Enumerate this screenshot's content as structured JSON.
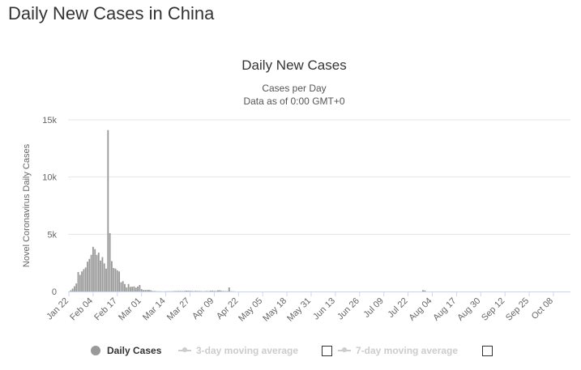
{
  "page": {
    "heading": "Daily New Cases in China"
  },
  "chart_data": {
    "type": "bar",
    "title": "Daily New Cases",
    "subtitle_1": "Cases per Day",
    "subtitle_2": "Data as of 0:00 GMT+0",
    "xlabel": "",
    "ylabel": "Novel Coronavirus Daily Cases",
    "ylim": [
      0,
      15000
    ],
    "yticks": [
      0,
      5000,
      10000,
      15000
    ],
    "ytick_labels": [
      "0",
      "5k",
      "10k",
      "15k"
    ],
    "x_start": "Jan 22",
    "day_count": 262,
    "xtick_labels": [
      "Jan 22",
      "Feb 04",
      "Feb 17",
      "Mar 01",
      "Mar 14",
      "Mar 27",
      "Apr 09",
      "Apr 22",
      "May 05",
      "May 18",
      "May 31",
      "Jun 13",
      "Jun 26",
      "Jul 09",
      "Jul 22",
      "Aug 04",
      "Aug 17",
      "Aug 30",
      "Sep 12",
      "Sep 25",
      "Oct 08"
    ],
    "xtick_step_days": 13,
    "bar_color": "#999999",
    "grid": true,
    "legend_position": "bottom",
    "series": [
      {
        "name": "Daily Cases",
        "points": [
          [
            "Jan 22",
            0
          ],
          [
            "Jan 23",
            100
          ],
          [
            "Jan 24",
            250
          ],
          [
            "Jan 25",
            450
          ],
          [
            "Jan 26",
            700
          ],
          [
            "Jan 27",
            1700
          ],
          [
            "Jan 28",
            1450
          ],
          [
            "Jan 29",
            1750
          ],
          [
            "Jan 30",
            1950
          ],
          [
            "Jan 31",
            2100
          ],
          [
            "Feb 01",
            2600
          ],
          [
            "Feb 02",
            2850
          ],
          [
            "Feb 03",
            3200
          ],
          [
            "Feb 04",
            3900
          ],
          [
            "Feb 05",
            3700
          ],
          [
            "Feb 06",
            3200
          ],
          [
            "Feb 07",
            3400
          ],
          [
            "Feb 08",
            2700
          ],
          [
            "Feb 09",
            3000
          ],
          [
            "Feb 10",
            2450
          ],
          [
            "Feb 11",
            2000
          ],
          [
            "Feb 12",
            14100
          ],
          [
            "Feb 13",
            5100
          ],
          [
            "Feb 14",
            2650
          ],
          [
            "Feb 15",
            2050
          ],
          [
            "Feb 16",
            2000
          ],
          [
            "Feb 17",
            1850
          ],
          [
            "Feb 18",
            1750
          ],
          [
            "Feb 19",
            800
          ],
          [
            "Feb 20",
            900
          ],
          [
            "Feb 21",
            650
          ],
          [
            "Feb 22",
            350
          ],
          [
            "Feb 23",
            650
          ],
          [
            "Feb 24",
            400
          ],
          [
            "Feb 25",
            420
          ],
          [
            "Feb 26",
            440
          ],
          [
            "Feb 27",
            330
          ],
          [
            "Feb 28",
            430
          ],
          [
            "Feb 29",
            570
          ],
          [
            "Mar 01",
            200
          ],
          [
            "Mar 02",
            125
          ],
          [
            "Mar 03",
            120
          ],
          [
            "Mar 04",
            140
          ],
          [
            "Mar 05",
            140
          ],
          [
            "Mar 06",
            100
          ],
          [
            "Mar 07",
            40
          ],
          [
            "Mar 08",
            40
          ],
          [
            "Mar 09",
            20
          ],
          [
            "Mar 10",
            20
          ],
          [
            "Mar 11",
            20
          ],
          [
            "Mar 12",
            10
          ],
          [
            "Mar 13",
            10
          ],
          [
            "Mar 14",
            20
          ],
          [
            "Mar 15",
            20
          ],
          [
            "Mar 16",
            20
          ],
          [
            "Mar 17",
            20
          ],
          [
            "Mar 18",
            30
          ],
          [
            "Mar 19",
            40
          ],
          [
            "Mar 20",
            40
          ],
          [
            "Mar 21",
            45
          ],
          [
            "Mar 22",
            40
          ],
          [
            "Mar 23",
            40
          ],
          [
            "Mar 24",
            50
          ],
          [
            "Mar 25",
            70
          ],
          [
            "Mar 26",
            60
          ],
          [
            "Mar 27",
            55
          ],
          [
            "Mar 28",
            45
          ],
          [
            "Mar 29",
            30
          ],
          [
            "Mar 30",
            50
          ],
          [
            "Mar 31",
            40
          ],
          [
            "Apr 01",
            35
          ],
          [
            "Apr 02",
            30
          ],
          [
            "Apr 03",
            20
          ],
          [
            "Apr 04",
            30
          ],
          [
            "Apr 05",
            40
          ],
          [
            "Apr 06",
            30
          ],
          [
            "Apr 07",
            60
          ],
          [
            "Apr 08",
            60
          ],
          [
            "Apr 09",
            50
          ],
          [
            "Apr 10",
            45
          ],
          [
            "Apr 11",
            100
          ],
          [
            "Apr 12",
            110
          ],
          [
            "Apr 13",
            50
          ],
          [
            "Apr 14",
            40
          ],
          [
            "Apr 15",
            30
          ],
          [
            "Apr 16",
            35
          ],
          [
            "Apr 17",
            350
          ],
          [
            "Apr 18",
            20
          ],
          [
            "Apr 19",
            15
          ],
          [
            "Apr 20",
            10
          ],
          [
            "Jul 30",
            120
          ],
          [
            "Jul 31",
            90
          ]
        ]
      }
    ]
  },
  "legend": {
    "daily_cases": "Daily Cases",
    "avg3": "3-day moving average",
    "avg7": "7-day moving average"
  }
}
